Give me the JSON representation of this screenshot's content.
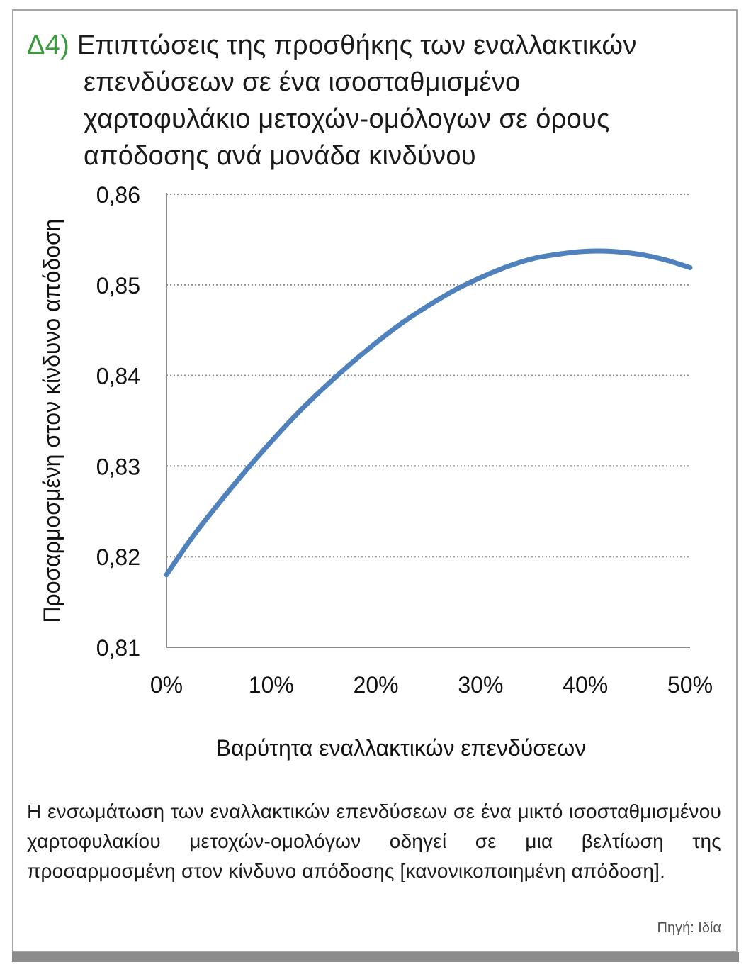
{
  "header": {
    "prefix": "Δ4)",
    "title_lines": [
      "Επιπτώσεις της προσθήκης των εναλλακτικών",
      "επενδύσεων σε ένα ισοσταθμισμένο",
      "χαρτοφυλάκιο μετοχών-ομόλογων σε όρους",
      "απόδοσης ανά μονάδα κινδύνου"
    ]
  },
  "chart_data": {
    "type": "line",
    "title": "",
    "xlabel": "Βαρύτητα εναλλακτικών επενδύσεων",
    "ylabel": "Προσαρμοσμένη στον κίνδυνο απόδοση",
    "x_tick_labels": [
      "0%",
      "10%",
      "20%",
      "30%",
      "40%",
      "50%"
    ],
    "y_tick_labels": [
      "0,86",
      "0,85",
      "0,84",
      "0,83",
      "0,82",
      "0,81"
    ],
    "xlim": [
      0,
      50
    ],
    "ylim": [
      0.81,
      0.86
    ],
    "grid": "horizontal dotted",
    "series": [
      {
        "color": "#4f81bd",
        "x": [
          0,
          2.5,
          5,
          7.5,
          10,
          12.5,
          15,
          17.5,
          20,
          22.5,
          25,
          27.5,
          30,
          32.5,
          35,
          37.5,
          40,
          42.5,
          45,
          47.5,
          50
        ],
        "y": [
          0.818,
          0.8222,
          0.8259,
          0.8294,
          0.8327,
          0.8358,
          0.8386,
          0.8412,
          0.8436,
          0.8458,
          0.8477,
          0.8494,
          0.8508,
          0.852,
          0.8529,
          0.8534,
          0.8537,
          0.8537,
          0.8534,
          0.8528,
          0.8519
        ]
      }
    ]
  },
  "caption": "Η ενσωμάτωση των εναλλακτικών επενδύσεων σε ένα μικτό ισοσταθμισμένου χαρτοφυλακίου μετοχών-ομολόγων οδηγεί σε μια βελτίωση της προσαρμοσμένη στον κίνδυνο απόδοσης [κανονικοποιημένη απόδοση].",
  "source": "Πηγή: Ιδία"
}
